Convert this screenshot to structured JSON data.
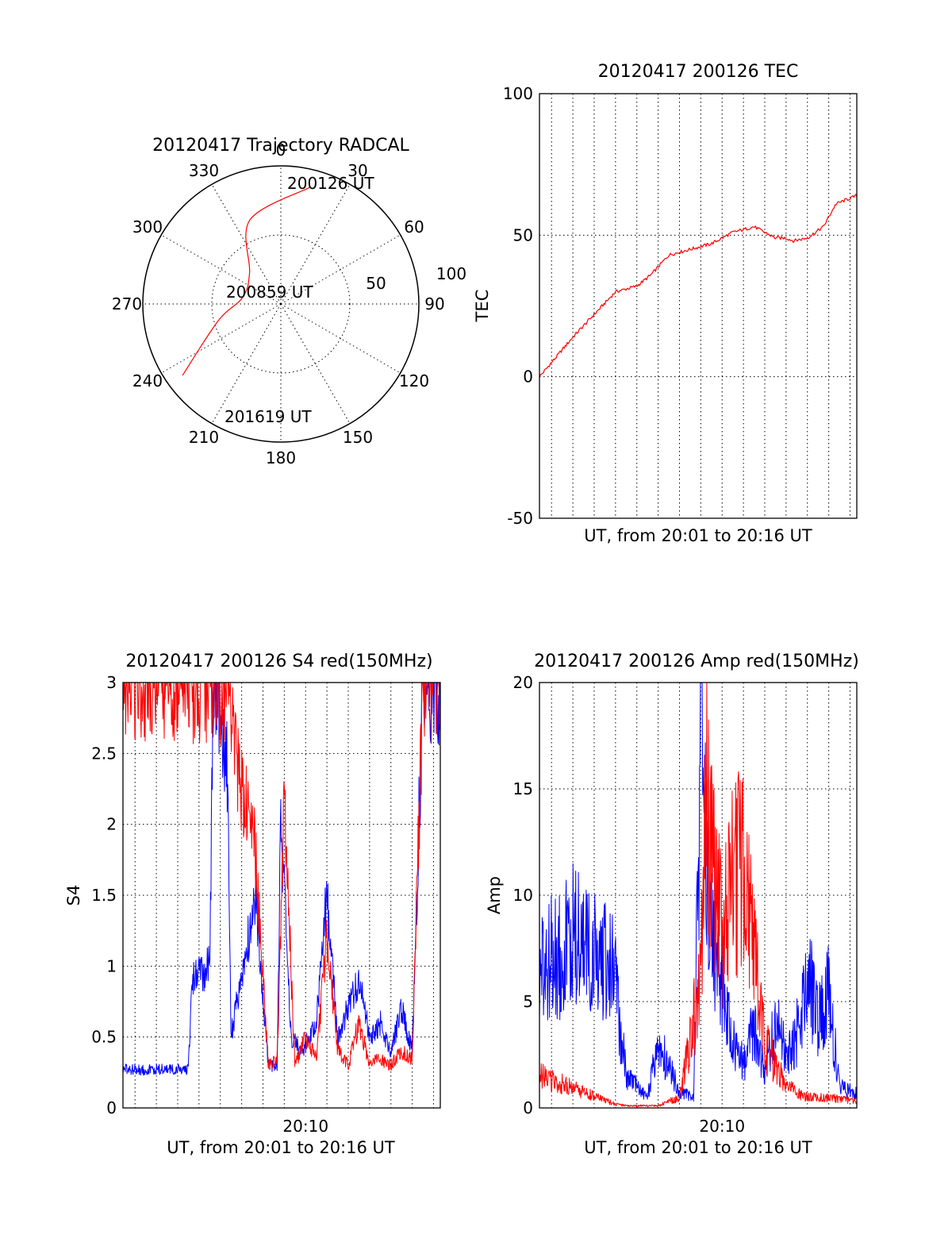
{
  "colors": {
    "red_channel": "#ff0000",
    "blue_channel": "#0000ff",
    "axes": "#000000"
  },
  "chart_data": [
    {
      "type": "scatter",
      "subtype": "polar trajectory",
      "title": "20120417 Trajectory RADCAL",
      "angle_ticks": [
        "0",
        "30",
        "60",
        "90",
        "120",
        "150",
        "180",
        "210",
        "240",
        "270",
        "300",
        "330"
      ],
      "radial_ticks": [
        "50",
        "100"
      ],
      "radial_range": [
        0,
        100
      ],
      "grid": true,
      "series": [
        {
          "color": "#ff0000",
          "points": [
            [
              14,
              87
            ],
            [
              340,
              65
            ],
            [
              315,
              32
            ],
            [
              280,
              28
            ],
            [
              255,
              47
            ],
            [
              234,
              88
            ]
          ]
        }
      ],
      "annotations": [
        {
          "text": "200126 UT",
          "azimuth": 14,
          "radius": 87
        },
        {
          "text": "200859 UT",
          "azimuth": 280,
          "radius": 28
        },
        {
          "text": "201619 UT",
          "azimuth": 234,
          "radius": 88
        }
      ]
    },
    {
      "type": "line",
      "title": "20120417 200126 TEC",
      "xlabel": "UT, from 20:01 to 20:16 UT",
      "ylabel": "TEC",
      "xlim": [
        "20:01:26",
        "20:16:19"
      ],
      "ylim": [
        -50,
        100
      ],
      "yticks": [
        "-50",
        "0",
        "50",
        "100"
      ],
      "grid": true,
      "series": [
        {
          "color": "#ff0000",
          "x": [
            "20:01:26",
            "20:02:00",
            "20:03:00",
            "20:04:00",
            "20:05:00",
            "20:06:00",
            "20:06:40",
            "20:07:30",
            "20:08:30",
            "20:09:30",
            "20:10:30",
            "20:11:30",
            "20:12:30",
            "20:13:00",
            "20:13:20",
            "20:14:00",
            "20:14:45",
            "20:15:20",
            "20:16:19"
          ],
          "y": [
            0,
            5,
            14,
            22,
            30,
            32,
            36,
            43,
            45,
            47,
            51,
            53,
            49,
            49,
            48,
            49,
            53,
            61,
            64
          ]
        }
      ]
    },
    {
      "type": "line",
      "title": "20120417 200126 S4 red(150MHz)",
      "xlabel": "UT, from 20:01 to 20:16 UT",
      "ylabel": "S4",
      "xticks": [
        "20:10"
      ],
      "xlim": [
        "20:01:26",
        "20:16:19"
      ],
      "ylim": [
        0,
        3
      ],
      "yticks": [
        "0",
        "0.5",
        "1",
        "1.5",
        "2",
        "2.5",
        "3"
      ],
      "grid": true,
      "series": [
        {
          "color": "#0000ff",
          "x": [
            "20:01:26",
            "20:04:30",
            "20:04:40",
            "20:05:30",
            "20:05:40",
            "20:06:20",
            "20:06:30",
            "20:07:40",
            "20:08:15",
            "20:08:40",
            "20:08:50",
            "20:09:20",
            "20:09:50",
            "20:10:30",
            "20:11:00",
            "20:11:30",
            "20:12:00",
            "20:12:30",
            "20:13:00",
            "20:13:30",
            "20:14:00",
            "20:14:30",
            "20:15:00",
            "20:15:30",
            "20:16:19"
          ],
          "y": [
            0.27,
            0.27,
            0.9,
            1.0,
            3.0,
            2.4,
            0.5,
            1.5,
            0.3,
            0.3,
            2.0,
            0.5,
            0.4,
            0.6,
            1.5,
            0.5,
            0.7,
            0.9,
            0.5,
            0.6,
            0.4,
            0.7,
            0.4,
            3.0,
            3.0
          ]
        },
        {
          "color": "#ff0000",
          "x": [
            "20:01:26",
            "20:06:30",
            "20:06:40",
            "20:07:40",
            "20:08:15",
            "20:08:40",
            "20:09:00",
            "20:09:30",
            "20:10:00",
            "20:10:30",
            "20:11:00",
            "20:11:30",
            "20:12:00",
            "20:12:30",
            "20:13:00",
            "20:13:30",
            "20:14:00",
            "20:14:30",
            "20:15:00",
            "20:15:30",
            "20:16:19"
          ],
          "y": [
            3.0,
            3.0,
            2.5,
            1.8,
            0.3,
            0.35,
            2.2,
            0.3,
            0.5,
            0.35,
            1.2,
            0.4,
            0.3,
            0.6,
            0.3,
            0.35,
            0.3,
            0.4,
            0.35,
            3.0,
            3.0
          ]
        }
      ]
    },
    {
      "type": "line",
      "title": "20120417 200126 Amp red(150MHz)",
      "xlabel": "UT, from 20:01 to 20:16 UT",
      "ylabel": "Amp",
      "xticks": [
        "20:10"
      ],
      "xlim": [
        "20:01:26",
        "20:16:19"
      ],
      "ylim": [
        0,
        20
      ],
      "yticks": [
        "0",
        "5",
        "10",
        "15",
        "20"
      ],
      "grid": true,
      "series": [
        {
          "color": "#0000ff",
          "x": [
            "20:01:26",
            "20:02:00",
            "20:03:00",
            "20:04:00",
            "20:04:55",
            "20:05:30",
            "20:06:00",
            "20:06:30",
            "20:07:00",
            "20:07:30",
            "20:08:00",
            "20:08:40",
            "20:09:00",
            "20:09:15",
            "20:09:30",
            "20:10:00",
            "20:10:30",
            "20:11:00",
            "20:11:30",
            "20:12:00",
            "20:12:30",
            "20:13:00",
            "20:13:30",
            "20:14:00",
            "20:14:30",
            "20:15:00",
            "20:15:30",
            "20:16:19"
          ],
          "y": [
            6,
            7,
            8,
            7,
            6.5,
            1.5,
            1,
            0.5,
            3,
            2,
            0.8,
            0.5,
            17,
            14,
            8,
            6,
            3,
            2,
            4,
            1.5,
            4,
            2.5,
            3.5,
            6.5,
            4,
            5.5,
            1,
            0.7
          ]
        },
        {
          "color": "#ff0000",
          "x": [
            "20:01:26",
            "20:04:55",
            "20:05:30",
            "20:07:00",
            "20:08:00",
            "20:09:00",
            "20:09:15",
            "20:09:30",
            "20:10:00",
            "20:10:30",
            "20:11:00",
            "20:11:30",
            "20:12:00",
            "20:12:30",
            "20:13:00",
            "20:14:00",
            "20:15:00",
            "20:16:19"
          ],
          "y": [
            1.5,
            0.2,
            0.1,
            0.1,
            0.5,
            6,
            16,
            12,
            8,
            11,
            11,
            7,
            3,
            2,
            1,
            0.5,
            0.5,
            0.3
          ]
        }
      ]
    }
  ]
}
